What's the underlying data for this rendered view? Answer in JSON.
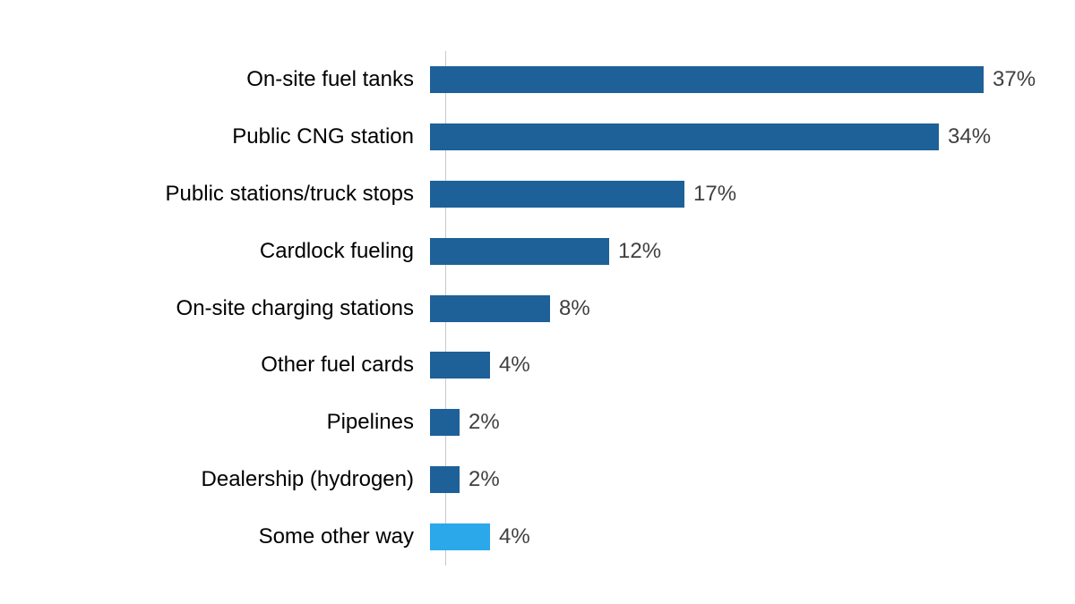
{
  "chart_data": {
    "type": "bar",
    "orientation": "horizontal",
    "title": "",
    "xlabel": "",
    "ylabel": "",
    "legend": "none",
    "grid": false,
    "xlim": [
      0,
      40
    ],
    "categories": [
      "On-site fuel tanks",
      "Public CNG station",
      "Public stations/truck stops",
      "Cardlock fueling",
      "On-site charging stations",
      "Other fuel cards",
      "Pipelines",
      "Dealership (hydrogen)",
      "Some other way"
    ],
    "values": [
      37,
      34,
      17,
      12,
      8,
      4,
      2,
      2,
      4
    ],
    "value_labels": [
      "37%",
      "34%",
      "17%",
      "12%",
      "8%",
      "4%",
      "2%",
      "2%",
      "4%"
    ],
    "bar_colors": [
      "#1E6198",
      "#1E6198",
      "#1E6198",
      "#1E6198",
      "#1E6198",
      "#1E6198",
      "#1E6198",
      "#1E6198",
      "#2AA8EA"
    ]
  },
  "colors": {
    "bar_default": "#1E6198",
    "bar_highlight": "#2AA8EA",
    "axis_line": "#C9C9C9",
    "value_text": "#404040",
    "category_text": "#000000",
    "background": "#FFFFFF"
  }
}
